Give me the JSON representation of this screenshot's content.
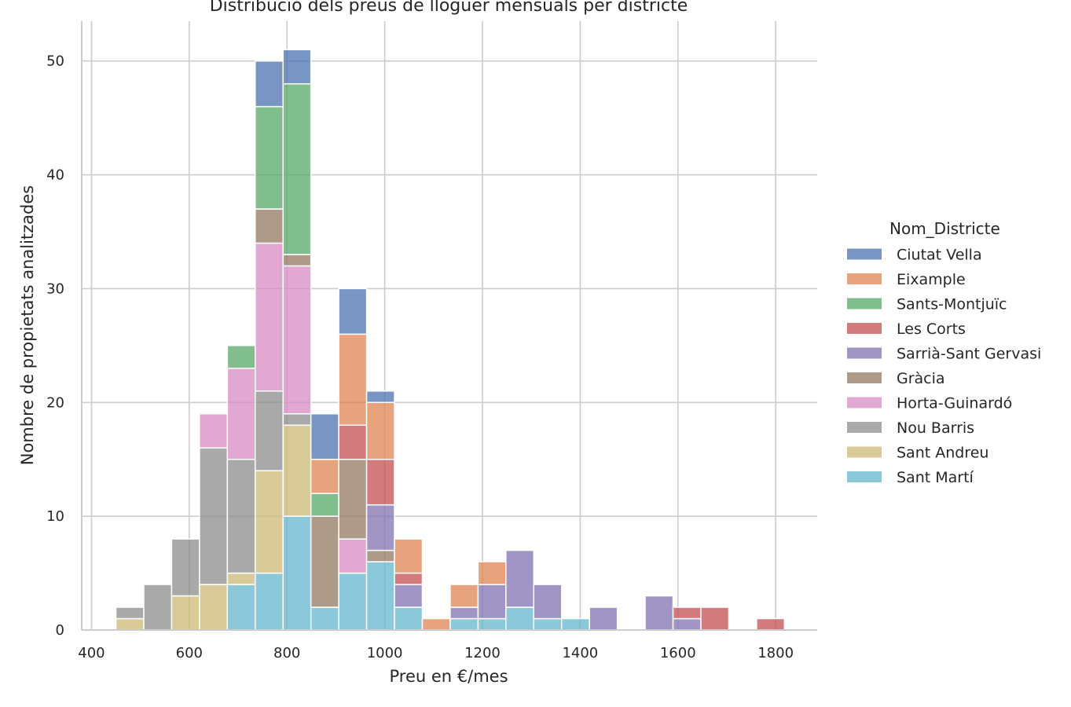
{
  "chart_data": {
    "type": "bar",
    "stacked": true,
    "title": "Distribució dels preus de lloguer mensuals per districte",
    "xlabel": "Preu en €/mes",
    "ylabel": "Nombre de propietats analitzades",
    "xlim": [
      380,
      1885
    ],
    "ylim": [
      0,
      53.5
    ],
    "xticks": [
      "400",
      "600",
      "800",
      "1000",
      "1200",
      "1400",
      "1600",
      "1800"
    ],
    "yticks": [
      "0",
      "10",
      "20",
      "30",
      "40",
      "50"
    ],
    "grid": true,
    "legend": {
      "title": "Nom_Districte",
      "position": "right"
    },
    "bin_edges": [
      450,
      507,
      564,
      621,
      678,
      735,
      792,
      849,
      906,
      963,
      1020,
      1077,
      1134,
      1191,
      1248,
      1305,
      1362,
      1419,
      1476,
      1533,
      1590,
      1647,
      1704,
      1761,
      1818
    ],
    "series": [
      {
        "name": "Ciutat Vella",
        "color": "#4c72b0",
        "values": [
          0,
          0,
          0,
          0,
          0,
          4,
          3,
          4,
          4,
          1,
          0,
          0,
          0,
          0,
          0,
          0,
          0,
          0,
          0,
          0,
          0,
          0,
          0,
          0
        ]
      },
      {
        "name": "Eixample",
        "color": "#dd8452",
        "values": [
          0,
          0,
          0,
          0,
          0,
          0,
          0,
          3,
          8,
          5,
          3,
          1,
          2,
          2,
          0,
          0,
          0,
          0,
          0,
          0,
          0,
          0,
          0,
          0
        ]
      },
      {
        "name": "Sants-Montjuïc",
        "color": "#55a868",
        "values": [
          0,
          0,
          0,
          0,
          2,
          9,
          15,
          2,
          0,
          0,
          0,
          0,
          0,
          0,
          0,
          0,
          0,
          0,
          0,
          0,
          0,
          0,
          0,
          0
        ]
      },
      {
        "name": "Les Corts",
        "color": "#c44e52",
        "values": [
          0,
          0,
          0,
          0,
          0,
          0,
          0,
          0,
          3,
          4,
          1,
          0,
          0,
          0,
          0,
          0,
          0,
          0,
          0,
          0,
          1,
          2,
          0,
          1
        ]
      },
      {
        "name": "Sarrià-Sant Gervasi",
        "color": "#8172b3",
        "values": [
          0,
          0,
          0,
          0,
          0,
          0,
          0,
          0,
          0,
          4,
          2,
          0,
          1,
          3,
          5,
          3,
          0,
          2,
          0,
          3,
          1,
          0,
          0,
          0
        ]
      },
      {
        "name": "Gràcia",
        "color": "#937860",
        "values": [
          0,
          0,
          0,
          0,
          0,
          3,
          1,
          8,
          7,
          1,
          0,
          0,
          0,
          0,
          0,
          0,
          0,
          0,
          0,
          0,
          0,
          0,
          0,
          0
        ]
      },
      {
        "name": "Horta-Guinardó",
        "color": "#da8bc3",
        "values": [
          0,
          0,
          0,
          3,
          8,
          13,
          13,
          0,
          3,
          0,
          0,
          0,
          0,
          0,
          0,
          0,
          0,
          0,
          0,
          0,
          0,
          0,
          0,
          0
        ]
      },
      {
        "name": "Nou Barris",
        "color": "#8c8c8c",
        "values": [
          1,
          4,
          5,
          12,
          10,
          7,
          1,
          0,
          0,
          0,
          0,
          0,
          0,
          0,
          0,
          0,
          0,
          0,
          0,
          0,
          0,
          0,
          0,
          0
        ]
      },
      {
        "name": "Sant Andreu",
        "color": "#ccb974",
        "values": [
          1,
          0,
          3,
          4,
          1,
          9,
          8,
          0,
          0,
          0,
          0,
          0,
          0,
          0,
          0,
          0,
          0,
          0,
          0,
          0,
          0,
          0,
          0,
          0
        ]
      },
      {
        "name": "Sant Martí",
        "color": "#64b5cd",
        "values": [
          0,
          0,
          0,
          0,
          4,
          5,
          10,
          2,
          5,
          6,
          2,
          0,
          1,
          1,
          2,
          1,
          1,
          0,
          0,
          0,
          0,
          0,
          0,
          0
        ]
      }
    ]
  }
}
